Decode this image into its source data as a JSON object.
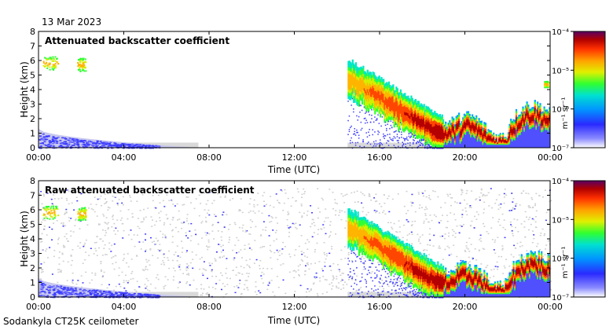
{
  "date_label": "13 Mar 2023",
  "footer_label": "Sodankyla CT25K ceilometer",
  "colors": {
    "background_fill": "#d9d9d9",
    "weak_signal": "#3d3dff",
    "colormap": [
      "#ffffff",
      "#6e6eff",
      "#1f1fff",
      "#00a0ff",
      "#00e6c8",
      "#32ff32",
      "#d2f000",
      "#ffb400",
      "#ff4600",
      "#b40000",
      "#5a0064"
    ]
  },
  "chart_data": [
    {
      "type": "heatmap",
      "title": "Attenuated backscatter coefficient",
      "xlabel": "Time (UTC)",
      "ylabel": "Height (km)",
      "xlim": [
        "00:00",
        "24:00"
      ],
      "ylim": [
        0,
        8
      ],
      "x_ticks": [
        "00:00",
        "04:00",
        "08:00",
        "12:00",
        "16:00",
        "20:00",
        "00:00"
      ],
      "y_ticks": [
        "0",
        "1",
        "2",
        "3",
        "4",
        "5",
        "6",
        "7",
        "8"
      ],
      "colorbar": {
        "label": "m⁻¹ sr⁻¹",
        "scale": "log",
        "range": [
          1e-07,
          0.0001
        ],
        "tick_labels": [
          "10⁻⁴",
          "10⁻⁵",
          "10⁻⁶",
          "10⁻⁷"
        ]
      },
      "features": [
        {
          "kind": "cloud",
          "t": [
            0.2,
            0.9
          ],
          "h": [
            5.4,
            6.3
          ]
        },
        {
          "kind": "cloud",
          "t": [
            1.8,
            2.2
          ],
          "h": [
            5.3,
            6.2
          ]
        },
        {
          "kind": "boundary_layer",
          "t": [
            0,
            7.5
          ],
          "h_top_start": 1.3,
          "h_top_end": 0.0
        },
        {
          "kind": "precipitating_cloud",
          "t": [
            14.5,
            19.0
          ],
          "h_top_start": 6.1,
          "h_top_end": 2.0
        },
        {
          "kind": "low_cloud",
          "t": [
            19.0,
            24.0
          ],
          "h": [
            0,
            3.2
          ]
        },
        {
          "kind": "cloud",
          "t": [
            23.7,
            23.9
          ],
          "h": [
            4.2,
            4.6
          ]
        }
      ]
    },
    {
      "type": "heatmap",
      "title": "Raw attenuated backscatter coefficient",
      "xlabel": "Time (UTC)",
      "ylabel": "Height (km)",
      "xlim": [
        "00:00",
        "24:00"
      ],
      "ylim": [
        0,
        8
      ],
      "x_ticks": [
        "00:00",
        "04:00",
        "08:00",
        "12:00",
        "16:00",
        "20:00",
        "00:00"
      ],
      "y_ticks": [
        "0",
        "1",
        "2",
        "3",
        "4",
        "5",
        "6",
        "7",
        "8"
      ],
      "colorbar": {
        "label": "m⁻¹ sr⁻¹",
        "scale": "log",
        "range": [
          1e-07,
          0.0001
        ],
        "tick_labels": [
          "10⁻⁴",
          "10⁻⁵",
          "10⁻⁶",
          "10⁻⁷"
        ]
      },
      "features": [
        {
          "kind": "noise_background",
          "t": [
            0,
            24
          ],
          "h": [
            0,
            7.5
          ]
        },
        {
          "kind": "cloud",
          "t": [
            0.2,
            0.9
          ],
          "h": [
            5.4,
            6.3
          ]
        },
        {
          "kind": "cloud",
          "t": [
            1.8,
            2.2
          ],
          "h": [
            5.3,
            6.2
          ]
        },
        {
          "kind": "boundary_layer",
          "t": [
            0,
            7.5
          ],
          "h_top_start": 1.3,
          "h_top_end": 0.0
        },
        {
          "kind": "precipitating_cloud",
          "t": [
            14.5,
            19.0
          ],
          "h_top_start": 6.1,
          "h_top_end": 2.0
        },
        {
          "kind": "low_cloud",
          "t": [
            19.0,
            24.0
          ],
          "h": [
            0,
            3.2
          ]
        }
      ]
    }
  ]
}
